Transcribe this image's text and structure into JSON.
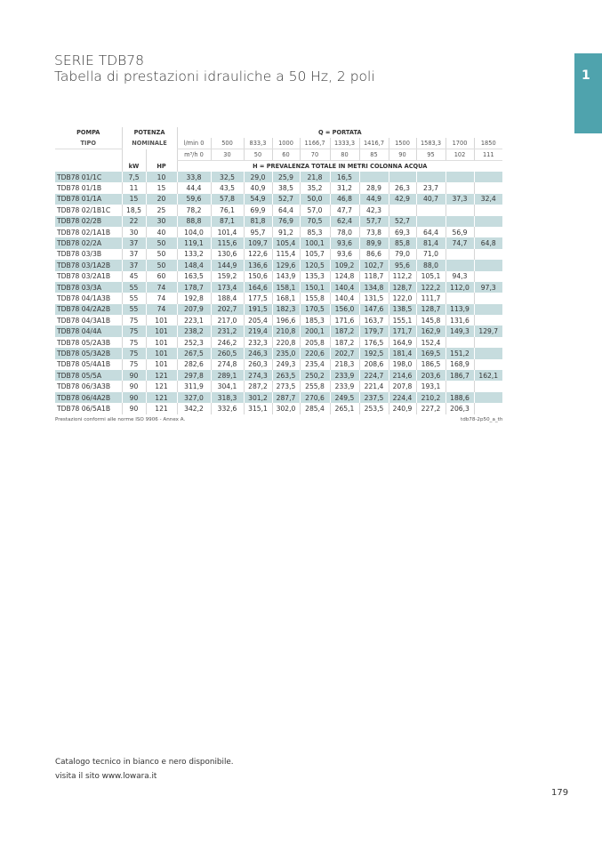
{
  "title": {
    "line1": "SERIE TDB78",
    "line2": "Tabella di prestazioni idrauliche a 50 Hz, 2 poli"
  },
  "tab_label": "1",
  "colors": {
    "tab": "#4fa3ad",
    "row_shade": "#c6dcde"
  },
  "table": {
    "h_pompa": "POMPA",
    "h_tipo": "TIPO",
    "h_potenza": "POTENZA",
    "h_nominale": "NOMINALE",
    "h_kw": "kW",
    "h_hp": "HP",
    "h_portata": "Q = PORTATA",
    "h_prevalenza": "H = PREVALENZA TOTALE IN METRI COLONNA ACQUA",
    "lmin_label": "l/min 0",
    "m3h_label": "m³/h 0",
    "lmin": [
      "500",
      "833,3",
      "1000",
      "1166,7",
      "1333,3",
      "1416,7",
      "1500",
      "1583,3",
      "1700",
      "1850"
    ],
    "m3h": [
      "30",
      "50",
      "60",
      "70",
      "80",
      "85",
      "90",
      "95",
      "102",
      "111"
    ],
    "rows": [
      [
        "TDB78 01/1C",
        "7,5",
        "10",
        "33,8",
        "32,5",
        "29,0",
        "25,9",
        "21,8",
        "16,5",
        "",
        "",
        "",
        "",
        ""
      ],
      [
        "TDB78 01/1B",
        "11",
        "15",
        "44,4",
        "43,5",
        "40,9",
        "38,5",
        "35,2",
        "31,2",
        "28,9",
        "26,3",
        "23,7",
        "",
        ""
      ],
      [
        "TDB78 01/1A",
        "15",
        "20",
        "59,6",
        "57,8",
        "54,9",
        "52,7",
        "50,0",
        "46,8",
        "44,9",
        "42,9",
        "40,7",
        "37,3",
        "32,4"
      ],
      [
        "TDB78 02/1B1C",
        "18,5",
        "25",
        "78,2",
        "76,1",
        "69,9",
        "64,4",
        "57,0",
        "47,7",
        "42,3",
        "",
        "",
        "",
        ""
      ],
      [
        "TDB78 02/2B",
        "22",
        "30",
        "88,8",
        "87,1",
        "81,8",
        "76,9",
        "70,5",
        "62,4",
        "57,7",
        "52,7",
        "",
        "",
        ""
      ],
      [
        "TDB78 02/1A1B",
        "30",
        "40",
        "104,0",
        "101,4",
        "95,7",
        "91,2",
        "85,3",
        "78,0",
        "73,8",
        "69,3",
        "64,4",
        "56,9",
        ""
      ],
      [
        "TDB78 02/2A",
        "37",
        "50",
        "119,1",
        "115,6",
        "109,7",
        "105,4",
        "100,1",
        "93,6",
        "89,9",
        "85,8",
        "81,4",
        "74,7",
        "64,8"
      ],
      [
        "TDB78 03/3B",
        "37",
        "50",
        "133,2",
        "130,6",
        "122,6",
        "115,4",
        "105,7",
        "93,6",
        "86,6",
        "79,0",
        "71,0",
        "",
        ""
      ],
      [
        "TDB78 03/1A2B",
        "37",
        "50",
        "148,4",
        "144,9",
        "136,6",
        "129,6",
        "120,5",
        "109,2",
        "102,7",
        "95,6",
        "88,0",
        "",
        ""
      ],
      [
        "TDB78 03/2A1B",
        "45",
        "60",
        "163,5",
        "159,2",
        "150,6",
        "143,9",
        "135,3",
        "124,8",
        "118,7",
        "112,2",
        "105,1",
        "94,3",
        ""
      ],
      [
        "TDB78 03/3A",
        "55",
        "74",
        "178,7",
        "173,4",
        "164,6",
        "158,1",
        "150,1",
        "140,4",
        "134,8",
        "128,7",
        "122,2",
        "112,0",
        "97,3"
      ],
      [
        "TDB78 04/1A3B",
        "55",
        "74",
        "192,8",
        "188,4",
        "177,5",
        "168,1",
        "155,8",
        "140,4",
        "131,5",
        "122,0",
        "111,7",
        "",
        ""
      ],
      [
        "TDB78 04/2A2B",
        "55",
        "74",
        "207,9",
        "202,7",
        "191,5",
        "182,3",
        "170,5",
        "156,0",
        "147,6",
        "138,5",
        "128,7",
        "113,9",
        ""
      ],
      [
        "TDB78 04/3A1B",
        "75",
        "101",
        "223,1",
        "217,0",
        "205,4",
        "196,6",
        "185,3",
        "171,6",
        "163,7",
        "155,1",
        "145,8",
        "131,6",
        ""
      ],
      [
        "TDB78 04/4A",
        "75",
        "101",
        "238,2",
        "231,2",
        "219,4",
        "210,8",
        "200,1",
        "187,2",
        "179,7",
        "171,7",
        "162,9",
        "149,3",
        "129,7"
      ],
      [
        "TDB78 05/2A3B",
        "75",
        "101",
        "252,3",
        "246,2",
        "232,3",
        "220,8",
        "205,8",
        "187,2",
        "176,5",
        "164,9",
        "152,4",
        "",
        ""
      ],
      [
        "TDB78 05/3A2B",
        "75",
        "101",
        "267,5",
        "260,5",
        "246,3",
        "235,0",
        "220,6",
        "202,7",
        "192,5",
        "181,4",
        "169,5",
        "151,2",
        ""
      ],
      [
        "TDB78 05/4A1B",
        "75",
        "101",
        "282,6",
        "274,8",
        "260,3",
        "249,3",
        "235,4",
        "218,3",
        "208,6",
        "198,0",
        "186,5",
        "168,9",
        ""
      ],
      [
        "TDB78 05/5A",
        "90",
        "121",
        "297,8",
        "289,1",
        "274,3",
        "263,5",
        "250,2",
        "233,9",
        "224,7",
        "214,6",
        "203,6",
        "186,7",
        "162,1"
      ],
      [
        "TDB78 06/3A3B",
        "90",
        "121",
        "311,9",
        "304,1",
        "287,2",
        "273,5",
        "255,8",
        "233,9",
        "221,4",
        "207,8",
        "193,1",
        "",
        ""
      ],
      [
        "TDB78 06/4A2B",
        "90",
        "121",
        "327,0",
        "318,3",
        "301,2",
        "287,7",
        "270,6",
        "249,5",
        "237,5",
        "224,4",
        "210,2",
        "188,6",
        ""
      ],
      [
        "TDB78 06/5A1B",
        "90",
        "121",
        "342,2",
        "332,6",
        "315,1",
        "302,0",
        "285,4",
        "265,1",
        "253,5",
        "240,9",
        "227,2",
        "206,3",
        ""
      ]
    ]
  },
  "note_left": "Prestazioni conformi alle norme ISO 9906 - Annex A.",
  "note_right": "tdb78-2p50_a_th",
  "footer": {
    "line1": "Catalogo tecnico in bianco e nero disponibile.",
    "line2": "visita il sito www.lowara.it"
  },
  "page_number": "179"
}
